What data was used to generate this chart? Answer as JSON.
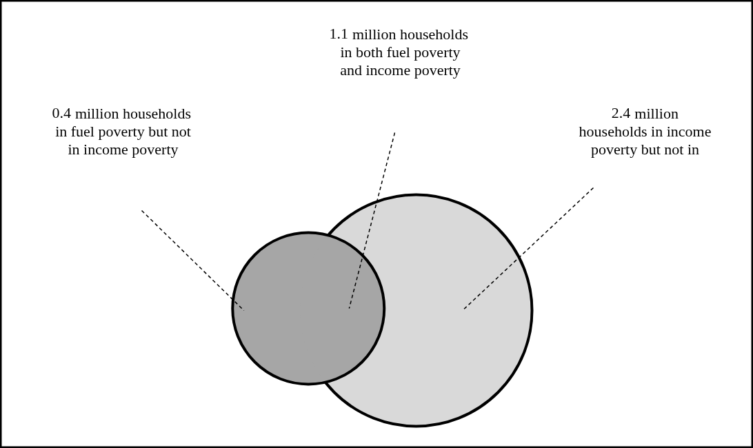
{
  "chart_data": {
    "type": "other",
    "categories": [
      "million households\nin fuel poverty but not\nin income poverty",
      "million households\nin both fuel poverty\nand income poverty",
      "million\nhouseholds in income\npoverty but not in"
    ],
    "value_labels": [
      "0.4",
      "1.1",
      "2.4"
    ],
    "values": [
      0.4,
      1.1,
      2.4
    ],
    "colors": [
      "#a6a6a6",
      "#a6a6a6",
      "#d9d9d9"
    ]
  }
}
